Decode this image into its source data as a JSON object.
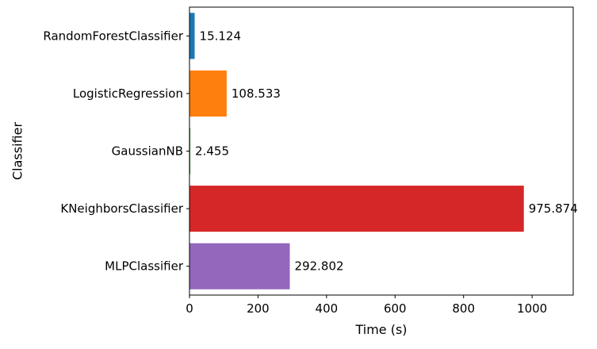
{
  "chart_data": {
    "type": "bar",
    "orientation": "horizontal",
    "title": "",
    "xlabel": "Time (s)",
    "ylabel": "Classifier",
    "categories": [
      "RandomForestClassifier",
      "LogisticRegression",
      "GaussianNB",
      "KNeighborsClassifier",
      "MLPClassifier"
    ],
    "values": [
      15.124,
      108.533,
      2.455,
      975.874,
      292.802
    ],
    "value_labels": [
      "15.124",
      "108.533",
      "2.455",
      "975.874",
      "292.802"
    ],
    "colors": [
      "#1f77b4",
      "#ff7f0e",
      "#2ca02c",
      "#d62728",
      "#9467bd"
    ],
    "xlim": [
      0,
      1120
    ],
    "xticks": [
      0,
      200,
      400,
      600,
      800,
      1000
    ],
    "grid": false,
    "legend": "none"
  }
}
